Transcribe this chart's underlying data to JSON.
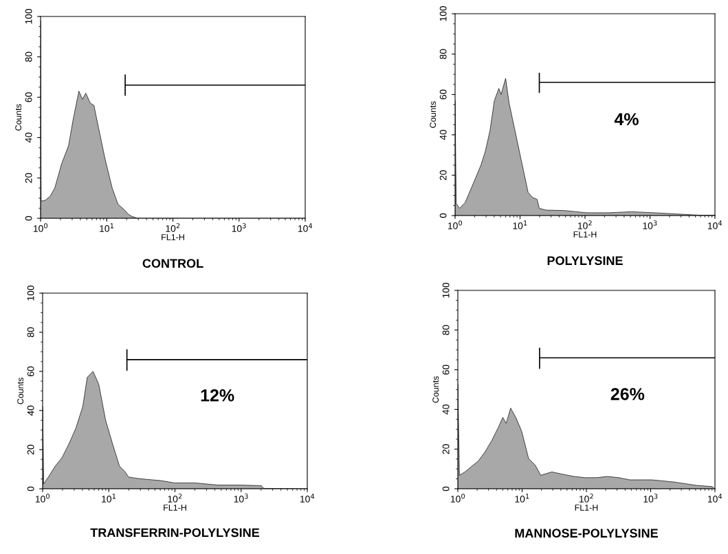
{
  "chart_data": [
    {
      "type": "area",
      "title": "CONTROL",
      "xlabel": "FL1-H",
      "ylabel": "Counts",
      "log": "x",
      "grid": false,
      "xlim": [
        1,
        10000
      ],
      "ylim": [
        0,
        100
      ],
      "xticks": [
        {
          "value": 1,
          "label": "10$^{0}$"
        },
        {
          "value": 10,
          "label": "10$^{1}$"
        },
        {
          "value": 100,
          "label": "10$^{2}$"
        },
        {
          "value": 1000,
          "label": "10$^{3}$"
        },
        {
          "value": 10000,
          "label": "10$^{4}$"
        }
      ],
      "yticks": [
        0,
        20,
        40,
        60,
        80,
        100
      ],
      "series": [
        {
          "type": "area",
          "color": "#a8a8a8",
          "x": [
            1,
            1.02,
            1.19,
            1.4,
            1.64,
            2.08,
            2.65,
            3.11,
            3.8,
            4.29,
            4.83,
            5.66,
            6.4,
            7.5,
            9.5,
            12.1,
            14.8,
            18.1,
            21.2,
            23.9,
            29.2,
            10000
          ],
          "values": [
            98,
            8.5,
            9,
            11,
            15,
            27,
            36,
            49,
            63,
            59,
            62,
            57,
            56,
            45,
            29,
            15,
            7,
            4.5,
            2,
            1,
            0,
            0
          ]
        },
        {
          "type": "line",
          "color": "#000000",
          "x": [
            19,
            19,
            19,
            10000
          ],
          "values": [
            71,
            61,
            66,
            66
          ]
        }
      ]
    },
    {
      "type": "area",
      "title": "POLYLYSINE",
      "xlabel": "FL1-H",
      "ylabel": "Counts",
      "log": "x",
      "grid": false,
      "xlim": [
        1,
        10000
      ],
      "ylim": [
        0,
        100
      ],
      "xticks": [
        {
          "value": 1,
          "label": "10$^{0}$"
        },
        {
          "value": 10,
          "label": "10$^{1}$"
        },
        {
          "value": 100,
          "label": "10$^{2}$"
        },
        {
          "value": 1000,
          "label": "10$^{3}$"
        },
        {
          "value": 10000,
          "label": "10$^{4}$"
        }
      ],
      "yticks": [
        0,
        20,
        40,
        60,
        80,
        100
      ],
      "annotations": [
        "4%"
      ],
      "series": [
        {
          "type": "area",
          "color": "#a8a8a8",
          "x": [
            1,
            1.04,
            1.17,
            1.43,
            1.97,
            2.5,
            2.93,
            3.44,
            4.03,
            4.72,
            5.11,
            6.0,
            6.76,
            8.24,
            10.5,
            13.3,
            15.6,
            18.3,
            19.8,
            25.1,
            47.5,
            105,
            233,
            518,
            1148,
            2543,
            5640,
            10000
          ],
          "values": [
            57,
            6,
            3.6,
            6.5,
            17,
            25,
            32,
            42,
            57,
            63,
            60,
            68,
            56,
            43,
            27,
            11.5,
            9,
            8,
            3.6,
            2.7,
            2.5,
            1.4,
            1.4,
            1.9,
            1.4,
            0.8,
            0.2,
            0.2
          ]
        },
        {
          "type": "line",
          "color": "#000000",
          "x": [
            19.8,
            19.8,
            19.8,
            10000
          ],
          "values": [
            70.5,
            61,
            66,
            66
          ]
        }
      ]
    },
    {
      "type": "area",
      "title": "TRANSFERRIN-POLYLYSINE",
      "xlabel": "FL1-H",
      "ylabel": "Counts",
      "log": "x",
      "grid": false,
      "xlim": [
        1,
        10000
      ],
      "ylim": [
        0,
        100
      ],
      "xticks": [
        {
          "value": 1,
          "label": "10$^{0}$"
        },
        {
          "value": 10,
          "label": "10$^{1}$"
        },
        {
          "value": 100,
          "label": "10$^{2}$"
        },
        {
          "value": 1000,
          "label": "10$^{3}$"
        },
        {
          "value": 10000,
          "label": "10$^{4}$"
        }
      ],
      "yticks": [
        0,
        20,
        40,
        60,
        80,
        100
      ],
      "annotations": [
        "12%"
      ],
      "series": [
        {
          "type": "area",
          "color": "#a8a8a8",
          "x": [
            1,
            1.04,
            1.22,
            1.55,
            1.97,
            2.5,
            3.18,
            4.04,
            4.73,
            5.78,
            7.05,
            8.96,
            11.4,
            14.5,
            17.6,
            19.9,
            27.4,
            37.7,
            60.8,
            98,
            201,
            446,
            991,
            2028,
            2198,
            10000
          ],
          "values": [
            42,
            2.5,
            6,
            11.6,
            16,
            23,
            31,
            42,
            57,
            60,
            53.5,
            35,
            23,
            11.6,
            8.7,
            6,
            5.3,
            4.8,
            4.2,
            3,
            3,
            1.9,
            1.9,
            1.6,
            0.2,
            0
          ]
        },
        {
          "type": "line",
          "color": "#000000",
          "x": [
            18.8,
            18.8,
            18.8,
            10000
          ],
          "values": [
            71,
            60.5,
            66,
            66
          ]
        }
      ]
    },
    {
      "type": "area",
      "title": "MANNOSE-POLYLYSINE",
      "xlabel": "FL1-H",
      "ylabel": "Counts",
      "log": "x",
      "grid": false,
      "xlim": [
        1,
        10000
      ],
      "ylim": [
        0,
        100
      ],
      "xticks": [
        {
          "value": 1,
          "label": "10$^{0}$"
        },
        {
          "value": 10,
          "label": "10$^{1}$"
        },
        {
          "value": 100,
          "label": "10$^{2}$"
        },
        {
          "value": 1000,
          "label": "10$^{3}$"
        },
        {
          "value": 10000,
          "label": "10$^{4}$"
        }
      ],
      "yticks": [
        0,
        20,
        40,
        60,
        80,
        100
      ],
      "annotations": [
        "26%"
      ],
      "series": [
        {
          "type": "area",
          "color": "#a8a8a8",
          "x": [
            1,
            1.06,
            1.29,
            1.64,
            2.08,
            2.65,
            3.37,
            4.27,
            5.01,
            5.65,
            6.63,
            8.09,
            9.88,
            12.6,
            16.0,
            19.5,
            29.0,
            43.3,
            64.5,
            96,
            143,
            213,
            318,
            474,
            1052,
            2339,
            5198,
            9080,
            10000
          ],
          "values": [
            53,
            6.8,
            8.5,
            11.3,
            14,
            18.6,
            24.3,
            31,
            36,
            33,
            40.7,
            35.6,
            28.8,
            15.3,
            11.9,
            6.8,
            8.5,
            7.3,
            6.2,
            5.6,
            5.6,
            6.2,
            5.6,
            4.5,
            4.5,
            3.4,
            1.7,
            1.1,
            0
          ]
        },
        {
          "type": "line",
          "color": "#000000",
          "x": [
            18.7,
            18.7,
            18.7,
            10000
          ],
          "values": [
            70.8,
            60.7,
            66,
            66
          ]
        }
      ]
    }
  ]
}
